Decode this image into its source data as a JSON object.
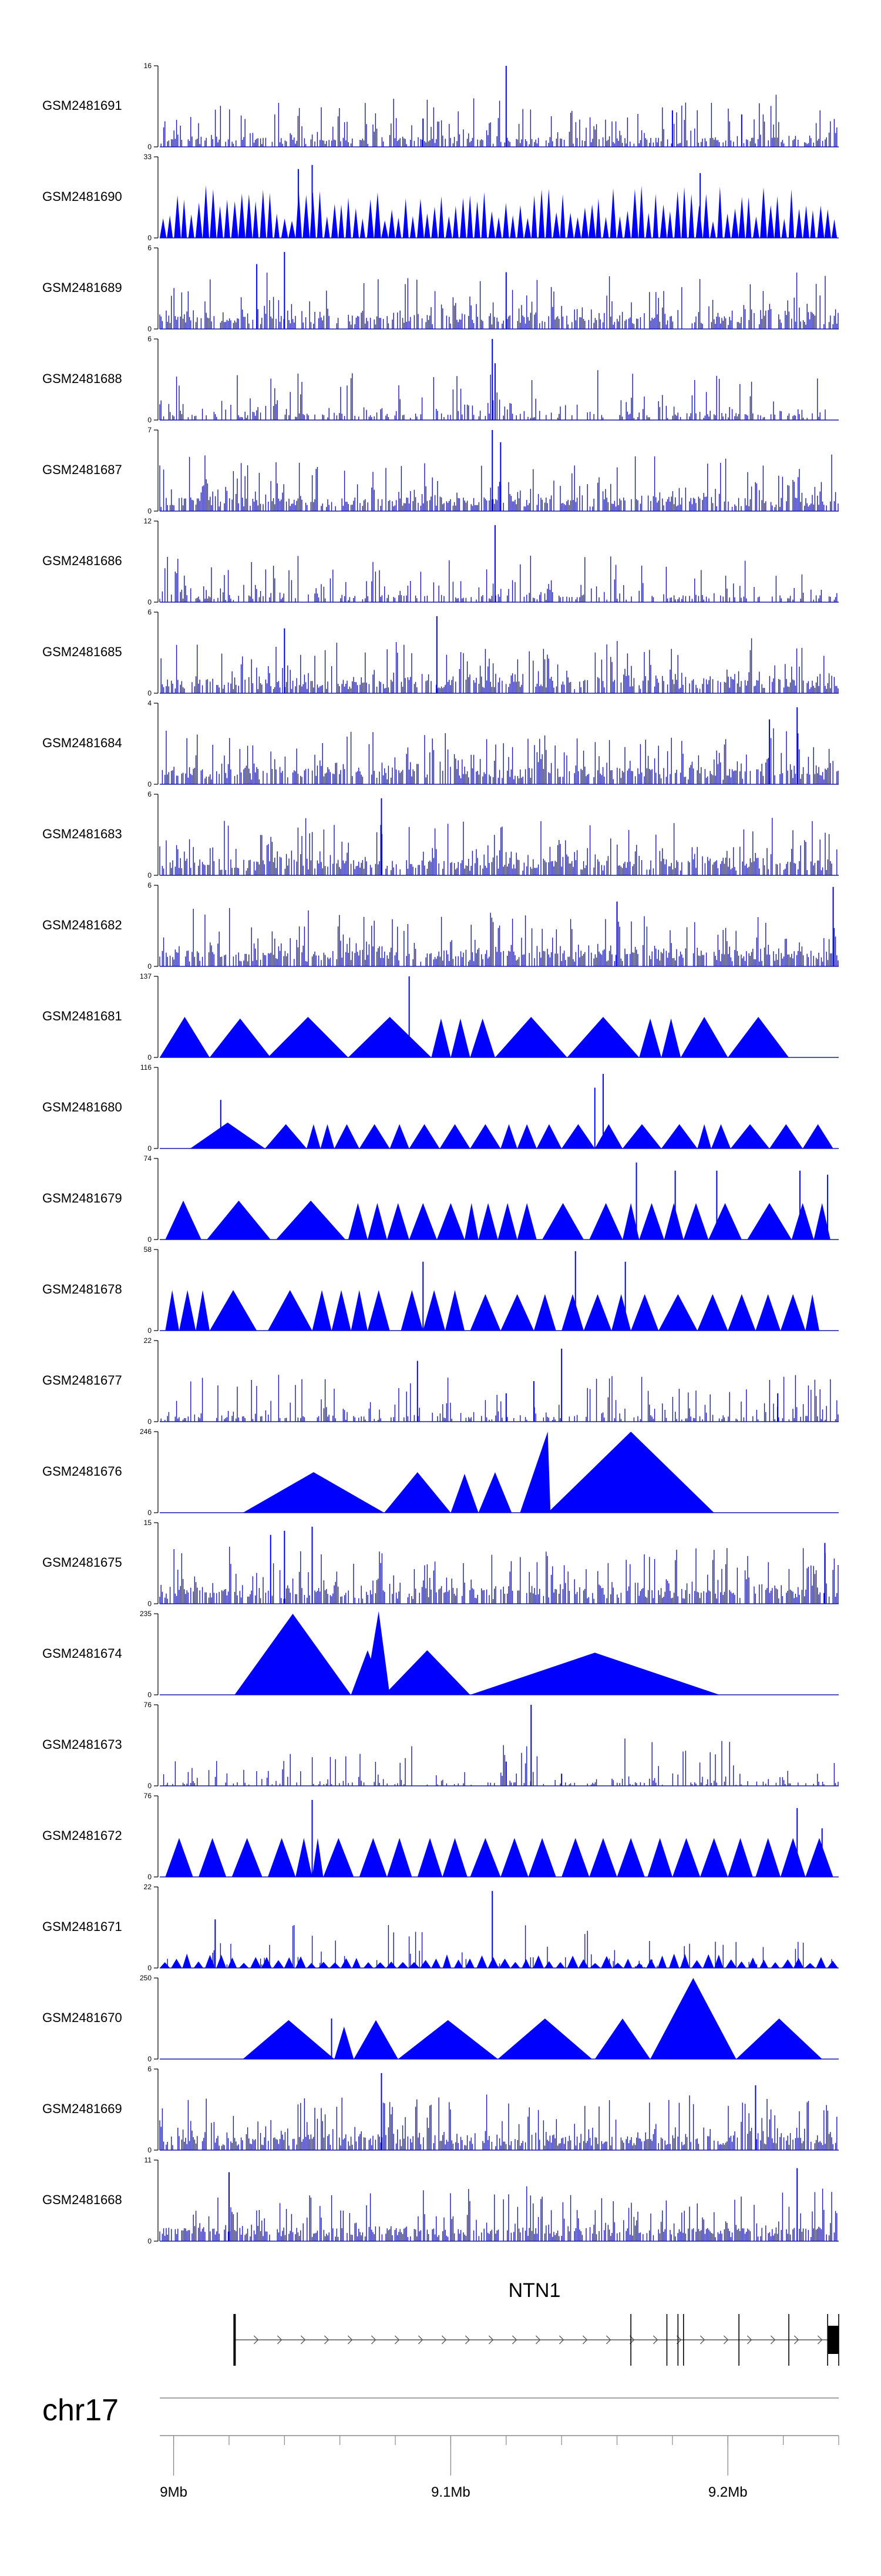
{
  "chart_data": {
    "type": "genome-browser-tracks",
    "chromosome": "chr17",
    "x_range_mb": [
      8.995,
      9.24
    ],
    "x_ticks": [
      {
        "value": 9.0,
        "label": "9Mb"
      },
      {
        "value": 9.1,
        "label": "9.1Mb"
      },
      {
        "value": 9.2,
        "label": "9.2Mb"
      }
    ],
    "minor_tick_step_mb": 0.02,
    "series_color": "#0000ff",
    "dense_color": "#1a1aa8",
    "tracks": [
      {
        "name": "GSM2481691",
        "ymax": 16,
        "style": "dense",
        "seed": 11,
        "density": 0.62,
        "baseline": 0.08,
        "spikes": [
          [
            9.12,
            1.0
          ],
          [
            9.09,
            0.35
          ],
          [
            9.18,
            0.45
          ],
          [
            9.205,
            0.4
          ]
        ]
      },
      {
        "name": "GSM2481690",
        "ymax": 33,
        "style": "mixed",
        "seed": 12,
        "density": 0.0,
        "baseline": 0.0,
        "spikes": [
          [
            9.045,
            0.85
          ],
          [
            9.05,
            0.9
          ],
          [
            9.19,
            0.8
          ]
        ],
        "tri_count": 95,
        "tri_h": [
          0.2,
          0.65
        ]
      },
      {
        "name": "GSM2481689",
        "ymax": 6,
        "style": "dense",
        "seed": 13,
        "density": 0.7,
        "baseline": 0.12,
        "spikes": [
          [
            9.04,
            0.95
          ],
          [
            9.12,
            0.7
          ],
          [
            9.03,
            0.8
          ]
        ]
      },
      {
        "name": "GSM2481688",
        "ymax": 6,
        "style": "dense",
        "seed": 14,
        "density": 0.45,
        "baseline": 0.06,
        "spikes": [
          [
            9.115,
            1.0
          ],
          [
            9.116,
            0.7
          ]
        ]
      },
      {
        "name": "GSM2481687",
        "ymax": 7,
        "style": "dense",
        "seed": 15,
        "density": 0.7,
        "baseline": 0.12,
        "spikes": [
          [
            9.115,
            1.0
          ],
          [
            9.118,
            0.85
          ]
        ]
      },
      {
        "name": "GSM2481686",
        "ymax": 12,
        "style": "dense",
        "seed": 16,
        "density": 0.45,
        "baseline": 0.06,
        "spikes": [
          [
            9.116,
            0.95
          ]
        ]
      },
      {
        "name": "GSM2481685",
        "ymax": 6,
        "style": "dense",
        "seed": 17,
        "density": 0.7,
        "baseline": 0.12,
        "spikes": [
          [
            9.095,
            0.95
          ],
          [
            9.04,
            0.8
          ]
        ]
      },
      {
        "name": "GSM2481684",
        "ymax": 4,
        "style": "dense",
        "seed": 18,
        "density": 0.72,
        "baseline": 0.14,
        "spikes": [
          [
            9.225,
            0.95
          ],
          [
            9.215,
            0.8
          ]
        ]
      },
      {
        "name": "GSM2481683",
        "ymax": 6,
        "style": "dense",
        "seed": 19,
        "density": 0.72,
        "baseline": 0.14,
        "spikes": [
          [
            9.075,
            0.95
          ]
        ]
      },
      {
        "name": "GSM2481682",
        "ymax": 6,
        "style": "dense",
        "seed": 20,
        "density": 0.72,
        "baseline": 0.14,
        "spikes": [
          [
            9.238,
            0.98
          ],
          [
            9.16,
            0.8
          ]
        ]
      },
      {
        "name": "GSM2481681",
        "ymax": 137,
        "style": "tri",
        "seed": 21,
        "tri_count": 0,
        "spikes": [
          [
            9.085,
            1.0
          ]
        ],
        "triangles": [
          [
            8.995,
            9.013,
            0.5
          ],
          [
            9.013,
            9.035,
            0.48
          ],
          [
            9.034,
            9.063,
            0.5
          ],
          [
            9.063,
            9.093,
            0.5
          ],
          [
            9.093,
            9.1,
            0.48
          ],
          [
            9.1,
            9.107,
            0.48
          ],
          [
            9.107,
            9.116,
            0.48
          ],
          [
            9.116,
            9.142,
            0.5
          ],
          [
            9.142,
            9.168,
            0.5
          ],
          [
            9.168,
            9.176,
            0.48
          ],
          [
            9.176,
            9.183,
            0.48
          ],
          [
            9.183,
            9.2,
            0.5
          ],
          [
            9.2,
            9.222,
            0.5
          ]
        ]
      },
      {
        "name": "GSM2481680",
        "ymax": 116,
        "style": "tri",
        "seed": 22,
        "tri_count": 0,
        "spikes": [
          [
            9.017,
            0.6
          ],
          [
            9.155,
            0.92
          ],
          [
            9.152,
            0.75
          ]
        ],
        "triangles": [
          [
            9.006,
            9.033,
            0.32
          ],
          [
            9.033,
            9.048,
            0.3
          ],
          [
            9.048,
            9.053,
            0.3
          ],
          [
            9.053,
            9.058,
            0.3
          ],
          [
            9.058,
            9.067,
            0.3
          ],
          [
            9.067,
            9.078,
            0.3
          ],
          [
            9.078,
            9.085,
            0.3
          ],
          [
            9.085,
            9.096,
            0.3
          ],
          [
            9.096,
            9.107,
            0.3
          ],
          [
            9.107,
            9.118,
            0.3
          ],
          [
            9.118,
            9.124,
            0.3
          ],
          [
            9.124,
            9.131,
            0.3
          ],
          [
            9.131,
            9.14,
            0.3
          ],
          [
            9.14,
            9.152,
            0.3
          ],
          [
            9.152,
            9.162,
            0.3
          ],
          [
            9.162,
            9.176,
            0.3
          ],
          [
            9.176,
            9.189,
            0.3
          ],
          [
            9.189,
            9.194,
            0.3
          ],
          [
            9.194,
            9.201,
            0.3
          ],
          [
            9.201,
            9.215,
            0.3
          ],
          [
            9.215,
            9.227,
            0.3
          ],
          [
            9.227,
            9.238,
            0.3
          ]
        ]
      },
      {
        "name": "GSM2481679",
        "ymax": 74,
        "style": "tri",
        "seed": 23,
        "tri_count": 0,
        "spikes": [
          [
            9.167,
            0.95
          ],
          [
            9.181,
            0.85
          ],
          [
            9.196,
            0.85
          ],
          [
            9.226,
            0.85
          ],
          [
            9.236,
            0.8
          ]
        ],
        "triangles": [
          [
            8.997,
            9.01,
            0.48
          ],
          [
            9.012,
            9.035,
            0.48
          ],
          [
            9.037,
            9.062,
            0.48
          ],
          [
            9.063,
            9.07,
            0.45
          ],
          [
            9.07,
            9.077,
            0.45
          ],
          [
            9.077,
            9.085,
            0.45
          ],
          [
            9.085,
            9.095,
            0.45
          ],
          [
            9.095,
            9.105,
            0.45
          ],
          [
            9.105,
            9.11,
            0.45
          ],
          [
            9.11,
            9.117,
            0.45
          ],
          [
            9.117,
            9.124,
            0.45
          ],
          [
            9.124,
            9.131,
            0.45
          ],
          [
            9.133,
            9.148,
            0.45
          ],
          [
            9.15,
            9.162,
            0.45
          ],
          [
            9.162,
            9.168,
            0.45
          ],
          [
            9.168,
            9.177,
            0.45
          ],
          [
            9.177,
            9.184,
            0.45
          ],
          [
            9.184,
            9.193,
            0.45
          ],
          [
            9.193,
            9.205,
            0.45
          ],
          [
            9.207,
            9.223,
            0.45
          ],
          [
            9.223,
            9.231,
            0.45
          ],
          [
            9.231,
            9.237,
            0.45
          ]
        ]
      },
      {
        "name": "GSM2481678",
        "ymax": 58,
        "style": "tri",
        "seed": 24,
        "tri_count": 0,
        "spikes": [
          [
            9.145,
            0.98
          ],
          [
            9.163,
            0.85
          ],
          [
            9.09,
            0.85
          ]
        ],
        "triangles": [
          [
            8.997,
            9.002,
            0.5
          ],
          [
            9.002,
            9.008,
            0.5
          ],
          [
            9.008,
            9.013,
            0.5
          ],
          [
            9.013,
            9.03,
            0.5
          ],
          [
            9.034,
            9.05,
            0.5
          ],
          [
            9.05,
            9.057,
            0.5
          ],
          [
            9.057,
            9.064,
            0.5
          ],
          [
            9.064,
            9.07,
            0.5
          ],
          [
            9.07,
            9.078,
            0.5
          ],
          [
            9.082,
            9.09,
            0.5
          ],
          [
            9.09,
            9.098,
            0.5
          ],
          [
            9.098,
            9.105,
            0.5
          ],
          [
            9.107,
            9.118,
            0.45
          ],
          [
            9.118,
            9.13,
            0.45
          ],
          [
            9.13,
            9.138,
            0.45
          ],
          [
            9.14,
            9.148,
            0.45
          ],
          [
            9.148,
            9.158,
            0.45
          ],
          [
            9.158,
            9.165,
            0.45
          ],
          [
            9.165,
            9.175,
            0.45
          ],
          [
            9.175,
            9.189,
            0.45
          ],
          [
            9.189,
            9.2,
            0.45
          ],
          [
            9.2,
            9.21,
            0.45
          ],
          [
            9.21,
            9.219,
            0.45
          ],
          [
            9.219,
            9.228,
            0.45
          ],
          [
            9.228,
            9.233,
            0.45
          ]
        ]
      },
      {
        "name": "GSM2481677",
        "ymax": 22,
        "style": "dense",
        "seed": 25,
        "density": 0.45,
        "baseline": 0.05,
        "spikes": [
          [
            9.088,
            0.75
          ],
          [
            9.14,
            0.9
          ],
          [
            9.13,
            0.5
          ],
          [
            9.12,
            0.35
          ],
          [
            9.218,
            0.35
          ]
        ]
      },
      {
        "name": "GSM2481676",
        "ymax": 246,
        "style": "tri",
        "seed": 26,
        "tri_count": 0,
        "spikes": [],
        "triangles": [
          [
            9.025,
            9.076,
            0.5
          ],
          [
            9.076,
            9.1,
            0.5
          ],
          [
            9.1,
            9.11,
            0.48
          ],
          [
            9.11,
            9.122,
            0.5
          ],
          [
            9.135,
            9.195,
            1.0
          ]
        ],
        "extra_poly": [
          [
            9.125,
            0.0
          ],
          [
            9.135,
            1.0
          ],
          [
            9.136,
            0.0
          ]
        ]
      },
      {
        "name": "GSM2481675",
        "ymax": 15,
        "style": "dense",
        "seed": 27,
        "density": 0.72,
        "baseline": 0.14,
        "spikes": [
          [
            9.05,
            0.95
          ],
          [
            9.035,
            0.85
          ],
          [
            9.04,
            0.9
          ],
          [
            9.235,
            0.75
          ]
        ]
      },
      {
        "name": "GSM2481674",
        "ymax": 235,
        "style": "tri",
        "seed": 28,
        "tri_count": 0,
        "spikes": [],
        "triangles": [
          [
            9.022,
            9.064,
            1.0
          ],
          [
            9.064,
            9.076,
            0.55
          ],
          [
            9.076,
            9.107,
            0.55
          ],
          [
            9.107,
            9.197,
            0.52
          ]
        ],
        "extra_poly": [
          [
            9.069,
            0.0
          ],
          [
            9.074,
            1.03
          ],
          [
            9.078,
            0.0
          ]
        ]
      },
      {
        "name": "GSM2481673",
        "ymax": 76,
        "style": "dense",
        "seed": 29,
        "density": 0.35,
        "baseline": 0.03,
        "spikes": [
          [
            9.129,
            1.0
          ],
          [
            9.12,
            0.3
          ],
          [
            9.14,
            0.15
          ]
        ]
      },
      {
        "name": "GSM2481672",
        "ymax": 76,
        "style": "tri",
        "seed": 30,
        "tri_count": 0,
        "spikes": [
          [
            9.05,
            0.95
          ],
          [
            9.225,
            0.85
          ],
          [
            9.234,
            0.6
          ]
        ],
        "triangles": [
          [
            8.997,
            9.007,
            0.48
          ],
          [
            9.009,
            9.019,
            0.48
          ],
          [
            9.021,
            9.032,
            0.48
          ],
          [
            9.034,
            9.044,
            0.48
          ],
          [
            9.044,
            9.05,
            0.48
          ],
          [
            9.05,
            9.054,
            0.48
          ],
          [
            9.054,
            9.065,
            0.48
          ],
          [
            9.067,
            9.077,
            0.48
          ],
          [
            9.077,
            9.086,
            0.48
          ],
          [
            9.088,
            9.097,
            0.48
          ],
          [
            9.097,
            9.106,
            0.48
          ],
          [
            9.107,
            9.118,
            0.48
          ],
          [
            9.118,
            9.128,
            0.48
          ],
          [
            9.128,
            9.138,
            0.48
          ],
          [
            9.14,
            9.15,
            0.48
          ],
          [
            9.15,
            9.16,
            0.48
          ],
          [
            9.16,
            9.17,
            0.48
          ],
          [
            9.171,
            9.18,
            0.48
          ],
          [
            9.18,
            9.19,
            0.48
          ],
          [
            9.19,
            9.2,
            0.48
          ],
          [
            9.2,
            9.209,
            0.48
          ],
          [
            9.21,
            9.219,
            0.48
          ],
          [
            9.219,
            9.228,
            0.48
          ],
          [
            9.228,
            9.238,
            0.48
          ]
        ]
      },
      {
        "name": "GSM2481671",
        "ymax": 22,
        "style": "mixed",
        "seed": 31,
        "density": 0.25,
        "baseline": 0.0,
        "spikes": [
          [
            9.115,
            0.95
          ],
          [
            9.015,
            0.6
          ]
        ],
        "tri_count": 60,
        "tri_h": [
          0.06,
          0.18
        ]
      },
      {
        "name": "GSM2481670",
        "ymax": 250,
        "style": "tri",
        "seed": 32,
        "tri_count": 0,
        "spikes": [
          [
            9.057,
            0.5
          ]
        ],
        "triangles": [
          [
            9.025,
            9.058,
            0.48
          ],
          [
            9.058,
            9.065,
            0.4
          ],
          [
            9.065,
            9.081,
            0.48
          ],
          [
            9.081,
            9.117,
            0.48
          ],
          [
            9.117,
            9.151,
            0.5
          ],
          [
            9.152,
            9.172,
            0.5
          ],
          [
            9.172,
            9.203,
            1.0
          ],
          [
            9.203,
            9.234,
            0.5
          ]
        ]
      },
      {
        "name": "GSM2481669",
        "ymax": 6,
        "style": "dense",
        "seed": 33,
        "density": 0.72,
        "baseline": 0.12,
        "spikes": [
          [
            9.075,
            0.95
          ],
          [
            9.21,
            0.8
          ]
        ]
      },
      {
        "name": "GSM2481668",
        "ymax": 11,
        "style": "dense",
        "seed": 34,
        "density": 0.72,
        "baseline": 0.12,
        "spikes": [
          [
            9.225,
            0.9
          ],
          [
            9.02,
            0.85
          ]
        ]
      }
    ],
    "gene": {
      "name": "NTN1",
      "start_mb": 9.022,
      "end_mb": 9.24,
      "exons_mb": [
        9.022,
        9.165,
        9.178,
        9.182,
        9.184,
        9.204,
        9.222,
        9.236,
        9.24
      ]
    }
  }
}
